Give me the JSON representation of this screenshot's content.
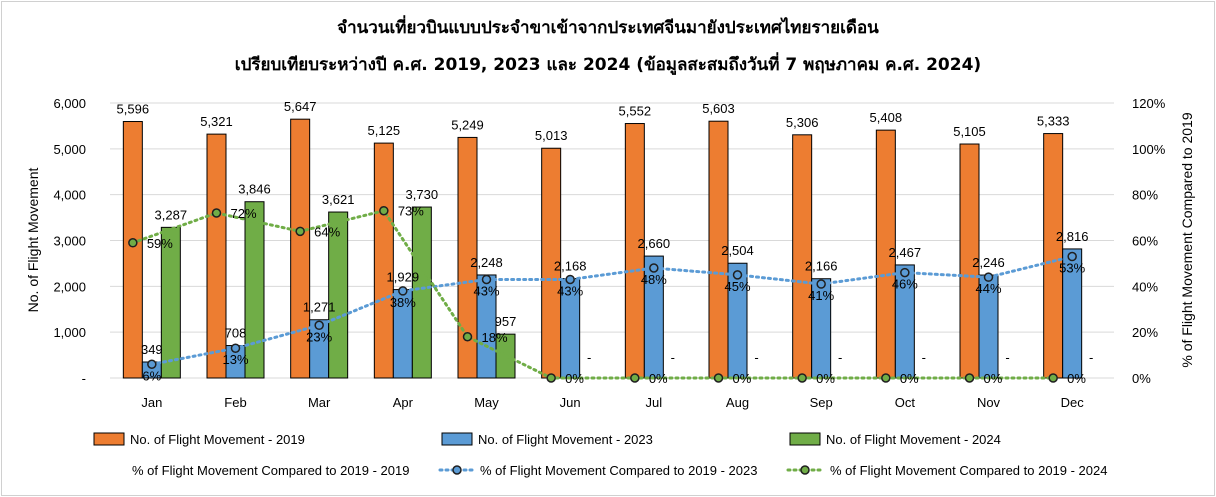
{
  "chart_data": {
    "type": "bar",
    "title_line1": "จำนวนเที่ยวบินแบบประจำขาเข้าจากประเทศจีนมายังประเทศไทยรายเดือน",
    "title_line2": "เปรียบเทียบระหว่างปี ค.ศ. 2019, 2023 และ 2024 (ข้อมูลสะสมถึงวันที่ 7 พฤษภาคม ค.ศ. 2024)",
    "ylabel": "No. of Flight Movement",
    "y2label": "% of Flight Movement Compared to 2019",
    "ylim": [
      0,
      6000
    ],
    "y2lim": [
      0,
      120
    ],
    "yticks": [
      "-",
      "1,000",
      "2,000",
      "3,000",
      "4,000",
      "5,000",
      "6,000"
    ],
    "y2ticks": [
      "0%",
      "20%",
      "40%",
      "60%",
      "80%",
      "100%",
      "120%"
    ],
    "categories": [
      "Jan",
      "Feb",
      "Mar",
      "Apr",
      "May",
      "Jun",
      "Jul",
      "Aug",
      "Sep",
      "Oct",
      "Nov",
      "Dec"
    ],
    "series": [
      {
        "name": "No. of Flight Movement - 2019",
        "color": "#ED7D31",
        "values": [
          5596,
          5321,
          5647,
          5125,
          5249,
          5013,
          5552,
          5603,
          5306,
          5408,
          5105,
          5333
        ],
        "labels": [
          "5,596",
          "5,321",
          "5,647",
          "5,125",
          "5,249",
          "5,013",
          "5,552",
          "5,603",
          "5,306",
          "5,408",
          "5,105",
          "5,333"
        ]
      },
      {
        "name": "No. of Flight Movement - 2023",
        "color": "#5B9BD5",
        "values": [
          349,
          708,
          1271,
          1929,
          2248,
          2168,
          2660,
          2504,
          2166,
          2467,
          2246,
          2816
        ],
        "labels": [
          "349",
          "708",
          "1,271",
          "1,929",
          "2,248",
          "2,168",
          "2,660",
          "2,504",
          "2,166",
          "2,467",
          "2,246",
          "2,816"
        ]
      },
      {
        "name": "No. of Flight Movement - 2024",
        "color": "#70AD47",
        "values": [
          3287,
          3846,
          3621,
          3730,
          957,
          0,
          0,
          0,
          0,
          0,
          0,
          0
        ],
        "labels": [
          "3,287",
          "3,846",
          "3,621",
          "3,730",
          "957",
          "-",
          "-",
          "-",
          "-",
          "-",
          "-",
          "-"
        ]
      }
    ],
    "pct_series": [
      {
        "name": "% of Flight Movement Compared to 2019 - 2019",
        "color": "#ED7D31",
        "values": [],
        "labels": []
      },
      {
        "name": "% of Flight Movement Compared to 2019 - 2023",
        "color": "#5B9BD5",
        "values": [
          6,
          13,
          23,
          38,
          43,
          43,
          48,
          45,
          41,
          46,
          44,
          53
        ],
        "labels": [
          "6%",
          "13%",
          "23%",
          "38%",
          "43%",
          "43%",
          "48%",
          "45%",
          "41%",
          "46%",
          "44%",
          "53%"
        ]
      },
      {
        "name": "% of Flight Movement Compared to 2019 - 2024",
        "color": "#70AD47",
        "values": [
          59,
          72,
          64,
          73,
          18,
          0,
          0,
          0,
          0,
          0,
          0,
          0
        ],
        "labels": [
          "59%",
          "72%",
          "64%",
          "73%",
          "18%",
          "0%",
          "0%",
          "0%",
          "0%",
          "0%",
          "0%",
          "0%"
        ]
      }
    ],
    "grid": true,
    "legend_position": "bottom"
  }
}
